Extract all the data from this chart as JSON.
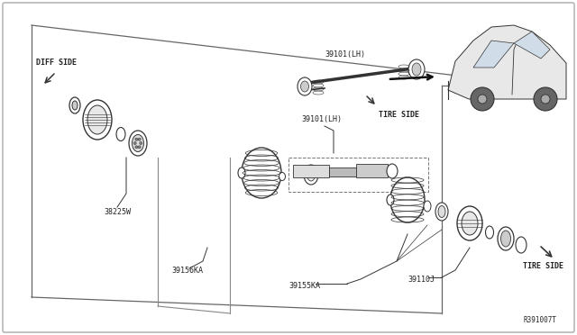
{
  "bg_color": "#f0f0f0",
  "line_color": "#333333",
  "text_color": "#222222",
  "ref_code": "R391007T",
  "labels": {
    "diff_side": "DIFF SIDE",
    "tire_side_upper": "TIRE SIDE",
    "tire_side_lower": "TIRE SIDE",
    "part_38225W": "38225W",
    "part_39101LH_upper": "39101(LH)",
    "part_39101LH_lower": "39101(LH)",
    "part_39156KA": "39156KA",
    "part_39155KA": "39155KA",
    "part_39110J": "39110J"
  }
}
